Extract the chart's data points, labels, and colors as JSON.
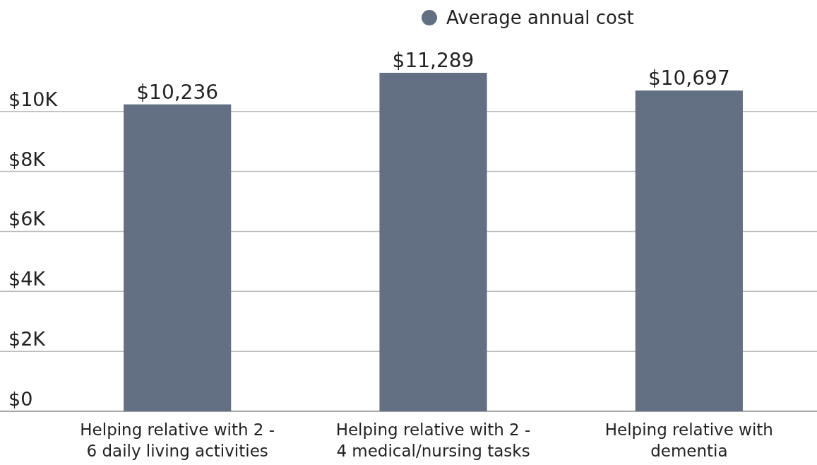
{
  "chart_data": {
    "type": "bar",
    "categories": [
      "Helping relative with 2 - 6 daily living activities",
      "Helping relative with 2 - 4 medical/nursing tasks",
      "Helping relative with dementia"
    ],
    "series": [
      {
        "name": "Average annual cost",
        "color": "#637083",
        "values": [
          10236,
          11289,
          10697
        ],
        "value_labels": [
          "$10,236",
          "$11,289",
          "$10,697"
        ]
      }
    ],
    "yticks": [
      {
        "value": 0,
        "label": "$0"
      },
      {
        "value": 2000,
        "label": "$2K"
      },
      {
        "value": 4000,
        "label": "$4K"
      },
      {
        "value": 6000,
        "label": "$6K"
      },
      {
        "value": 8000,
        "label": "$8K"
      },
      {
        "value": 10000,
        "label": "$10K"
      }
    ],
    "ylim": [
      0,
      11289
    ],
    "grid": "y",
    "legend": "top"
  }
}
